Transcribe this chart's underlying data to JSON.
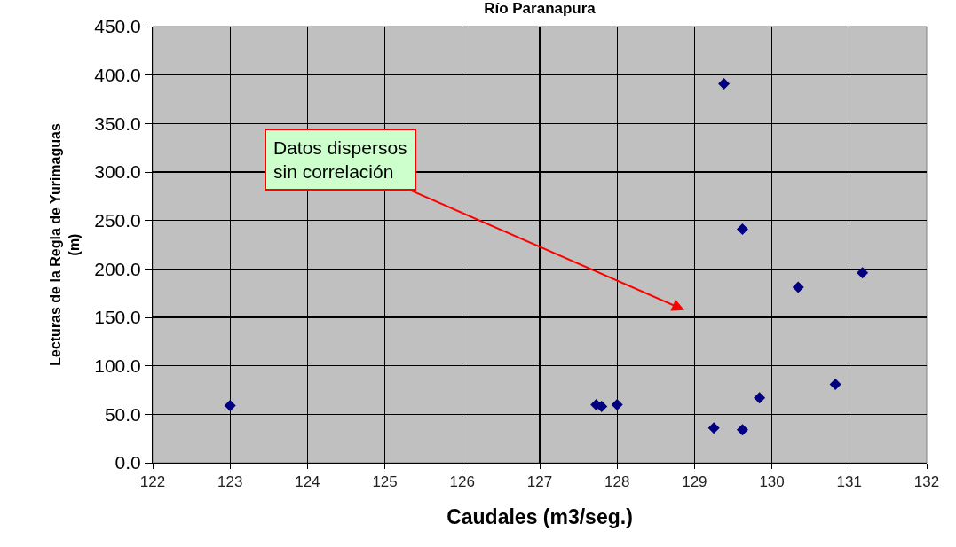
{
  "chart_data": {
    "type": "scatter",
    "title": "Río Paranapura",
    "xlabel": "Caudales (m3/seg.)",
    "ylabel": "Lecturas de la Regla de Yurimaguas\n(m)",
    "x": [
      123.0,
      127.73,
      127.8,
      128.0,
      129.25,
      129.38,
      129.62,
      129.62,
      129.84,
      130.34,
      130.82,
      131.17
    ],
    "series": [
      {
        "color": "#000080",
        "values": [
          59,
          60,
          58,
          60,
          36,
          391,
          241,
          34,
          67,
          181,
          81,
          196
        ]
      }
    ],
    "xlim": [
      122,
      132
    ],
    "xticks": [
      122,
      123,
      124,
      125,
      126,
      127,
      128,
      129,
      130,
      131,
      132
    ],
    "ylim": [
      0,
      450
    ],
    "yticks": [
      {
        "value": 0,
        "label": "0.0"
      },
      {
        "value": 50,
        "label": "50.0"
      },
      {
        "value": 100,
        "label": "100.0"
      },
      {
        "value": 150,
        "label": "150.0"
      },
      {
        "value": 200,
        "label": "200.0"
      },
      {
        "value": 250,
        "label": "250.0"
      },
      {
        "value": 300,
        "label": "300.0"
      },
      {
        "value": 350,
        "label": "350.0"
      },
      {
        "value": 400,
        "label": "400.0"
      },
      {
        "value": 450,
        "label": "450.0"
      }
    ],
    "grid": true,
    "marker": "diamond",
    "annotations": [
      "Datos dispersos\nsin correlación"
    ]
  }
}
